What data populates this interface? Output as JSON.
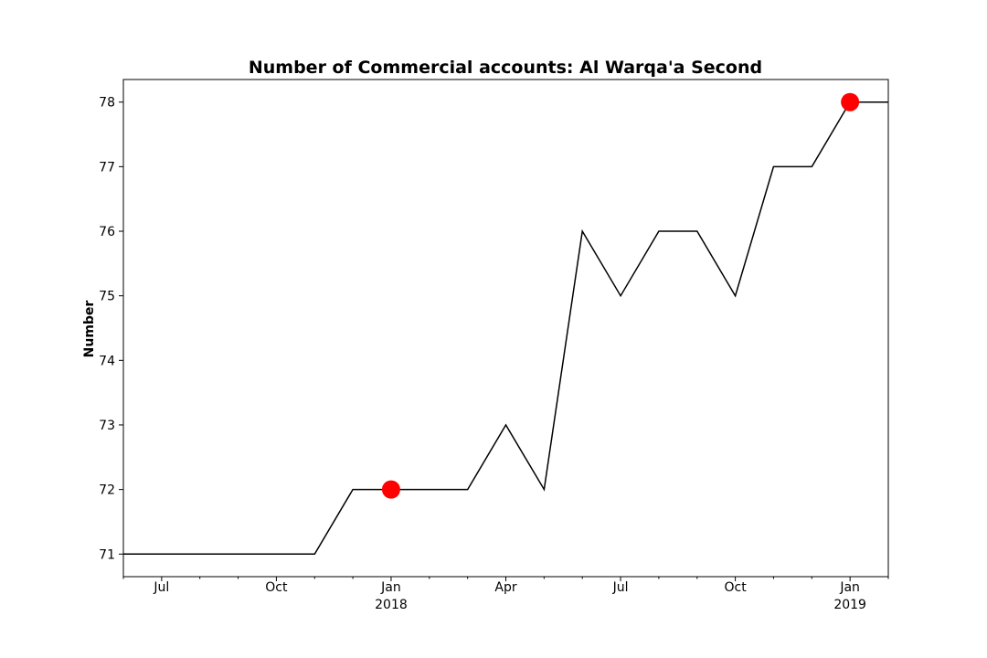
{
  "chart_data": {
    "type": "line",
    "title": "Number of Commercial accounts: Al Warqa'a Second",
    "xlabel": "",
    "ylabel": "Number",
    "xlim": [
      "2017-06",
      "2019-02"
    ],
    "ylim": [
      70.65,
      78.35
    ],
    "y_ticks": [
      71,
      72,
      73,
      74,
      75,
      76,
      77,
      78
    ],
    "x_ticks_major": [
      {
        "x": "2017-07",
        "label": "Jul",
        "sublabel": ""
      },
      {
        "x": "2017-10",
        "label": "Oct",
        "sublabel": ""
      },
      {
        "x": "2018-01",
        "label": "Jan",
        "sublabel": "2018"
      },
      {
        "x": "2018-04",
        "label": "Apr",
        "sublabel": ""
      },
      {
        "x": "2018-07",
        "label": "Jul",
        "sublabel": ""
      },
      {
        "x": "2018-10",
        "label": "Oct",
        "sublabel": ""
      },
      {
        "x": "2019-01",
        "label": "Jan",
        "sublabel": "2019"
      }
    ],
    "grid": false,
    "series": [
      {
        "color": "#000000",
        "x": [
          "2017-06",
          "2017-07",
          "2017-08",
          "2017-09",
          "2017-10",
          "2017-11",
          "2017-12",
          "2018-01",
          "2018-02",
          "2018-03",
          "2018-04",
          "2018-05",
          "2018-06",
          "2018-07",
          "2018-08",
          "2018-09",
          "2018-10",
          "2018-11",
          "2018-12",
          "2019-01",
          "2019-02"
        ],
        "y": [
          71,
          71,
          71,
          71,
          71,
          71,
          72,
          72,
          72,
          72,
          73,
          72,
          76,
          75,
          76,
          76,
          75,
          77,
          77,
          78,
          78
        ]
      }
    ],
    "highlight_points": {
      "color": "#ff0000",
      "x": [
        "2018-01",
        "2019-01"
      ],
      "y": [
        72,
        78
      ]
    }
  }
}
